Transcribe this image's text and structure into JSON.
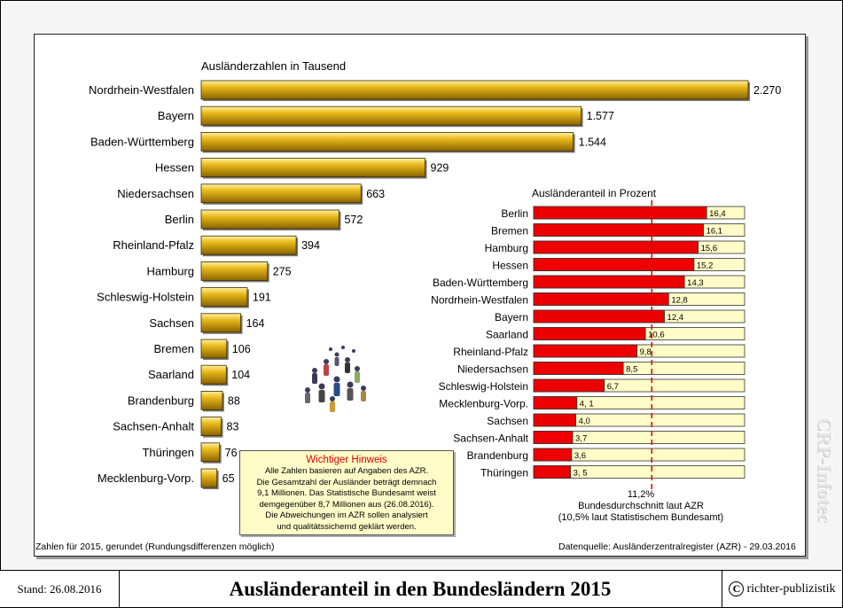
{
  "footer": {
    "stand": "Stand: 26.08.2016",
    "title": "Ausländeranteil in den Bundesländern 2015",
    "copyright": "richter-publizistik",
    "watermark": "CRP-Infotec"
  },
  "notes": {
    "rounding": "Zahlen für 2015, gerundet (Rundungsdifferenzen möglich)",
    "source": "Datenquelle: Ausländerzentralregister (AZR) - 29.03.2016"
  },
  "hint": {
    "title": "Wichtiger Hinweis",
    "lines": [
      "Alle Zahlen basieren auf Angaben des AZR.",
      "Die Gesamtzahl der Ausländer beträgt demnach",
      "9,1 Millionen. Das Statistische Bundesamt weist",
      "demgegenüber 8,7 Millionen aus (26.08.2016).",
      "Die Abweichungen im AZR sollen analysiert",
      "und qualitätssichernd geklärt werden."
    ]
  },
  "colors": {
    "gold": "#e8b81a",
    "red": "#ee0000",
    "cream": "#fffcc8"
  },
  "chart_data": [
    {
      "type": "bar",
      "title": "Ausländerzahlen in Tausend",
      "categories": [
        "Nordrhein-Westfalen",
        "Bayern",
        "Baden-Württemberg",
        "Hessen",
        "Niedersachsen",
        "Berlin",
        "Rheinland-Pfalz",
        "Hamburg",
        "Schleswig-Holstein",
        "Sachsen",
        "Bremen",
        "Saarland",
        "Brandenburg",
        "Sachsen-Anhalt",
        "Thüringen",
        "Mecklenburg-Vorp."
      ],
      "values": [
        2270,
        1577,
        1544,
        929,
        663,
        572,
        394,
        275,
        191,
        164,
        106,
        104,
        88,
        83,
        76,
        65
      ],
      "value_labels": [
        "2.270",
        "1.577",
        "1.544",
        "929",
        "663",
        "572",
        "394",
        "275",
        "191",
        "164",
        "106",
        "104",
        "88",
        "83",
        "76",
        "65"
      ],
      "orientation": "horizontal"
    },
    {
      "type": "bar",
      "title": "Ausländeranteil in Prozent",
      "categories": [
        "Berlin",
        "Bremen",
        "Hamburg",
        "Hessen",
        "Baden-Württemberg",
        "Nordrhein-Westfalen",
        "Bayern",
        "Saarland",
        "Rheinland-Pfalz",
        "Niedersachsen",
        "Schleswig-Holstein",
        "Mecklenburg-Vorp.",
        "Sachsen",
        "Sachsen-Anhalt",
        "Brandenburg",
        "Thüringen"
      ],
      "values": [
        16.4,
        16.1,
        15.6,
        15.2,
        14.3,
        12.8,
        12.4,
        10.6,
        9.8,
        8.5,
        6.7,
        4.1,
        4.0,
        3.7,
        3.6,
        3.5
      ],
      "value_labels": [
        "16,4",
        "16,1",
        "15,6",
        "15,2",
        "14,3",
        "12,8",
        "12,4",
        "10,6",
        "9,8",
        "8,5",
        "6,7",
        "4, 1",
        "4,0",
        "3,7",
        "3,6",
        "3, 5"
      ],
      "orientation": "horizontal",
      "reference_line": {
        "value": 11.2,
        "label": "11,2%",
        "caption": "Bundesdurchschnitt laut AZR",
        "caption2": "(10,5% laut Statistischem Bundesamt)"
      }
    }
  ]
}
